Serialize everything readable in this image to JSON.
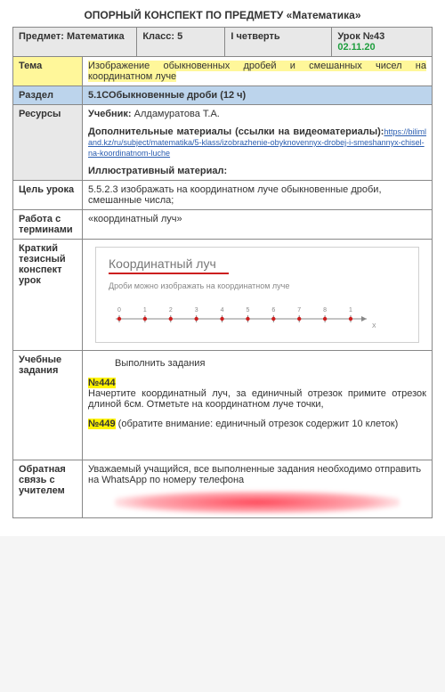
{
  "heading": "ОПОРНЫЙ КОНСПЕКТ ПО ПРЕДМЕТУ «Математика»",
  "header": {
    "subject_label": "Предмет:",
    "subject_value": "Математика",
    "class_label": "Класс:",
    "class_value": "5",
    "quarter": "I четверть",
    "lesson_label": "Урок №43",
    "date": "02.11.20"
  },
  "tema": {
    "label": "Тема",
    "text": "Изображение обыкновенных дробей и смешанных чисел на координатном луче"
  },
  "razdel": {
    "label": "Раздел",
    "text": "5.1СОбыкновенные дроби (12 ч)"
  },
  "resources": {
    "label": "Ресурсы",
    "textbook_label": "Учебник:",
    "textbook_value": "Алдамуратова Т.А.",
    "extra_label": "Дополнительные материалы (ссылки на видеоматериалы):",
    "extra_url": "https://bilimland.kz/ru/subject/matematika/5-klass/izobrazhenie-obyknovennyx-drobej-i-smeshannyx-chisel-na-koordinatnom-luche",
    "illus_label": "Иллюстративный материал:"
  },
  "goal": {
    "label": "Цель урока",
    "text": "5.5.2.3 изображать на координатном луче обыкновенные дроби, смешанные числа;"
  },
  "terms": {
    "label": "Работа с терминами",
    "text": "«координатный луч»"
  },
  "summary": {
    "label": "Краткий тезисный конспект урок",
    "chart": {
      "title": "Координатный луч",
      "subtitle": "Дроби можно изображать на координатном луче",
      "ticks": [
        "0",
        "1",
        "2",
        "3",
        "4",
        "5",
        "6",
        "7",
        "8",
        "1"
      ],
      "x_end_label": "X",
      "line_color": "#888888",
      "point_color": "#cc1f1f",
      "background": "#ffffff",
      "title_color": "#777777",
      "underline_color": "#cc1f1f"
    }
  },
  "tasks": {
    "label": "Учебные задания",
    "intro": "Выполнить задания",
    "n444": "№444",
    "n444_text": "Начертите координатный луч, за единичный отрезок примите отрезок длиной 6см. Отметьте на координатном луче точки,",
    "n449": "№449",
    "n449_text": " (обратите внимание: единичный отрезок содержит 10 клеток)"
  },
  "feedback": {
    "label": "Обратная связь с учителем",
    "text_pre": "Уважаемый учащийся, все выполненные задания необходимо отправить на ",
    "whatsapp": "WhatsApp",
    "text_post": " по номеру телефона"
  },
  "colors": {
    "header_bg": "#e8e8e8",
    "highlight": "#fff300",
    "tema_bg": "#fff79a",
    "section_bg": "#bcd4ec",
    "date_green": "#1e9e3e",
    "border": "#888888"
  }
}
